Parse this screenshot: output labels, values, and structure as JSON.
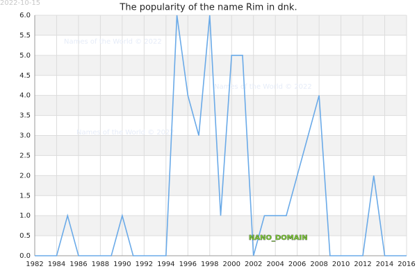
{
  "date_stamp": "2022-10-15",
  "watermarks": [
    "Names of the World © 2022",
    "Names of the World © 2022",
    "Names of the World © 2022"
  ],
  "badge": "NANO_DOMAIN",
  "chart_data": {
    "type": "line",
    "title": "The popularity of the name Rim in dnk.",
    "x": [
      1982,
      1983,
      1984,
      1985,
      1986,
      1987,
      1988,
      1989,
      1990,
      1991,
      1992,
      1993,
      1994,
      1995,
      1996,
      1997,
      1998,
      1999,
      2000,
      2001,
      2002,
      2003,
      2004,
      2005,
      2006,
      2007,
      2008,
      2009,
      2010,
      2011,
      2012,
      2013,
      2014,
      2015,
      2016
    ],
    "values": [
      0,
      0,
      0,
      1,
      0,
      0,
      0,
      0,
      1,
      0,
      0,
      0,
      0,
      6,
      4,
      3,
      6,
      1,
      5,
      5,
      0,
      1,
      1,
      1,
      2,
      3,
      4,
      0,
      0,
      0,
      0,
      2,
      0,
      0,
      0
    ],
    "color": "#6aaae8",
    "xlim": [
      1982,
      2016
    ],
    "xticks": [
      1982,
      1984,
      1986,
      1988,
      1990,
      1992,
      1994,
      1996,
      1998,
      2000,
      2002,
      2004,
      2006,
      2008,
      2010,
      2012,
      2014,
      2016
    ],
    "ylim": [
      0,
      6
    ],
    "yticks": [
      {
        "value": 0,
        "label": "0.0"
      },
      {
        "value": 0.5,
        "label": "0.5"
      },
      {
        "value": 1,
        "label": "1.0"
      },
      {
        "value": 1.5,
        "label": "1.5"
      },
      {
        "value": 2,
        "label": "2.0"
      },
      {
        "value": 2.5,
        "label": "2.5"
      },
      {
        "value": 3,
        "label": "3.0"
      },
      {
        "value": 3.5,
        "label": "3.5"
      },
      {
        "value": 4,
        "label": "4.0"
      },
      {
        "value": 4.5,
        "label": "4.5"
      },
      {
        "value": 5,
        "label": "5.0"
      },
      {
        "value": 5.5,
        "label": "5.5"
      },
      {
        "value": 6,
        "label": "6.0"
      }
    ],
    "grid": true
  }
}
